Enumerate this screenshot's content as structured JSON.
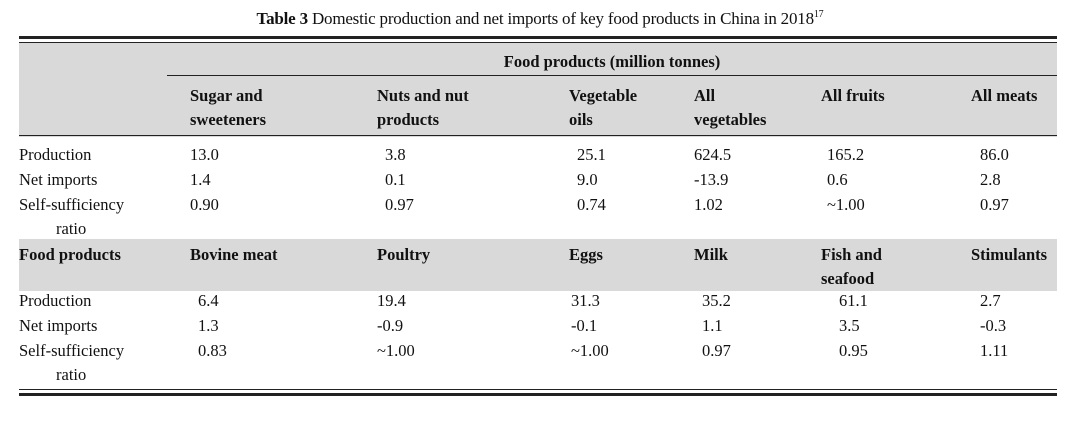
{
  "caption": {
    "label": "Table 3",
    "text": "Domestic production and net imports of key food products in China in 2018",
    "ref": "17"
  },
  "spanner": "Food products (million tonnes)",
  "section1": {
    "headers": [
      [
        "Sugar and",
        "sweeteners"
      ],
      [
        "Nuts and nut",
        "products"
      ],
      [
        "Vegetable",
        "oils"
      ],
      [
        "All",
        "vegetables"
      ],
      [
        "All fruits"
      ],
      [
        "All meats"
      ]
    ],
    "rows": [
      {
        "label": [
          "Production"
        ],
        "values": [
          "13.0",
          "3.8",
          "25.1",
          "624.5",
          "165.2",
          "86.0"
        ]
      },
      {
        "label": [
          "Net imports"
        ],
        "values": [
          "1.4",
          "0.1",
          "9.0",
          "-13.9",
          "0.6",
          "2.8"
        ]
      },
      {
        "label": [
          "Self-sufficiency",
          "ratio"
        ],
        "values": [
          "0.90",
          "0.97",
          "0.74",
          "1.02",
          "~1.00",
          "0.97"
        ]
      }
    ]
  },
  "section2": {
    "row_header": "Food products",
    "headers": [
      [
        "Bovine meat"
      ],
      [
        "Poultry"
      ],
      [
        "Eggs"
      ],
      [
        "Milk"
      ],
      [
        "Fish and",
        "seafood"
      ],
      [
        "Stimulants"
      ]
    ],
    "rows": [
      {
        "label": [
          "Production"
        ],
        "values": [
          "6.4",
          "19.4",
          "31.3",
          "35.2",
          "61.1",
          "2.7"
        ]
      },
      {
        "label": [
          "Net imports"
        ],
        "values": [
          "1.3",
          "-0.9",
          "-0.1",
          "1.1",
          "3.5",
          "-0.3"
        ]
      },
      {
        "label": [
          "Self-sufficiency",
          "ratio"
        ],
        "values": [
          "0.83",
          "~1.00",
          "~1.00",
          "0.97",
          "0.95",
          "1.11"
        ]
      }
    ]
  }
}
